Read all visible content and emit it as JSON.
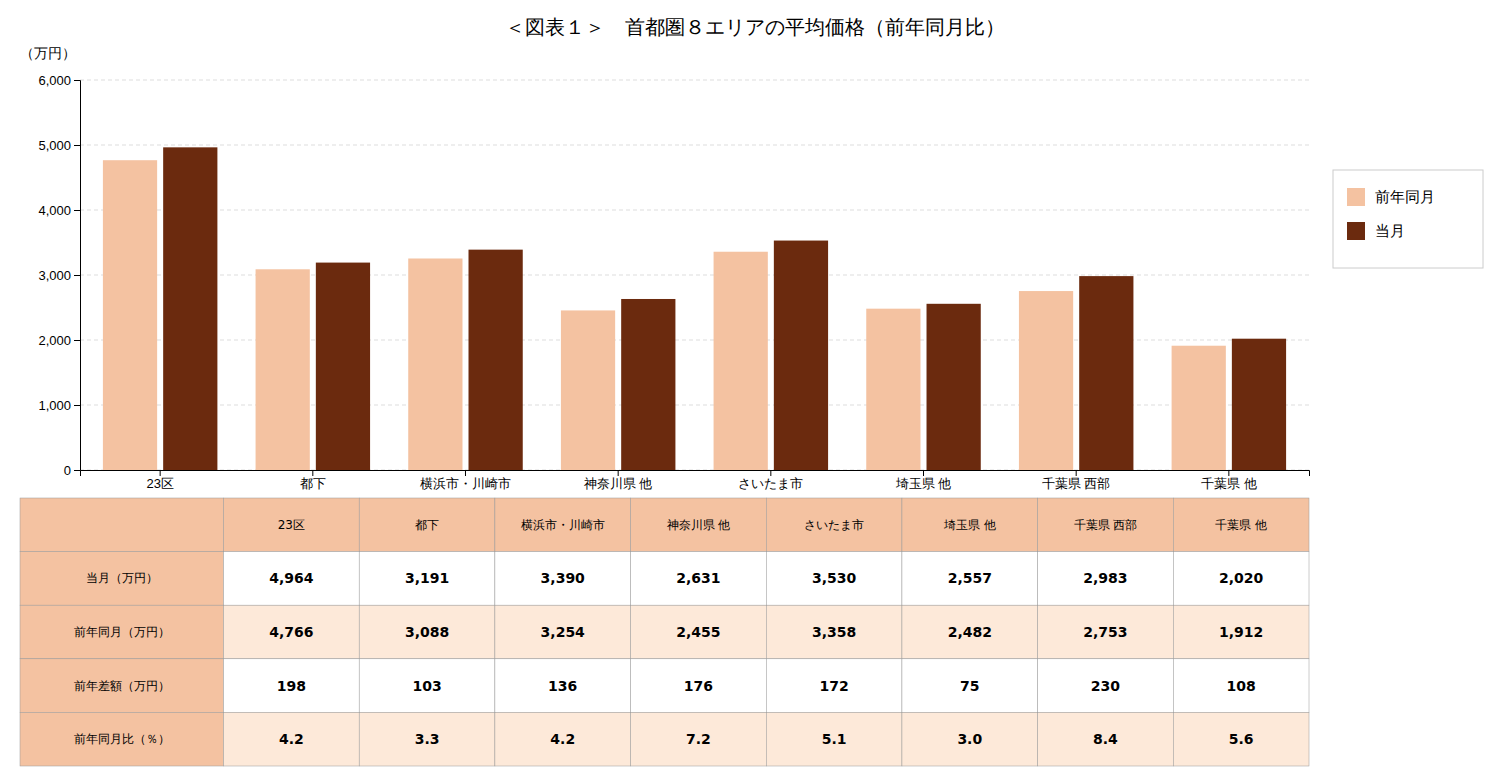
{
  "chart_data": {
    "type": "bar",
    "title": "＜図表１＞　首都圏８エリアの平均価格（前年同月比）",
    "ylabel": "（万円）",
    "categories": [
      "23区",
      "都下",
      "横浜市・川崎市",
      "神奈川県 他",
      "さいたま市",
      "埼玉県 他",
      "千葉県 西部",
      "千葉県 他"
    ],
    "series": [
      {
        "name": "前年同月",
        "color": "#F4C2A1",
        "values": [
          4766,
          3088,
          3254,
          2455,
          3358,
          2482,
          2753,
          1912
        ]
      },
      {
        "name": "当月",
        "color": "#6B2A0E",
        "values": [
          4964,
          3191,
          3390,
          2631,
          3530,
          2557,
          2983,
          2020
        ]
      }
    ],
    "ylim": [
      0,
      6000
    ],
    "yticks": [
      0,
      {
        "value": 1000,
        "label": "1,000"
      },
      {
        "value": 2000,
        "label": "2,000"
      },
      {
        "value": 3000,
        "label": "3,000"
      },
      {
        "value": 4000,
        "label": "4,000"
      },
      {
        "value": 5000,
        "label": "5,000"
      },
      {
        "value": 6000,
        "label": "6,000"
      }
    ],
    "grid": true,
    "legend": "right",
    "table": {
      "row_labels": [
        "当月（万円）",
        "前年同月（万円）",
        "前年差額（万円）",
        "前年同月比（％）"
      ],
      "values": [
        [
          4964,
          3191,
          3390,
          2631,
          3530,
          2557,
          2983,
          2020
        ],
        [
          4766,
          3088,
          3254,
          2455,
          3358,
          2482,
          2753,
          1912
        ],
        [
          198,
          103,
          136,
          176,
          172,
          75,
          230,
          108
        ],
        [
          4.2,
          3.3,
          4.2,
          7.2,
          5.1,
          3.0,
          8.4,
          5.6
        ]
      ],
      "value_labels": [
        [
          "4,964",
          "3,191",
          "3,390",
          "2,631",
          "3,530",
          "2,557",
          "2,983",
          "2,020"
        ],
        [
          "4,766",
          "3,088",
          "3,254",
          "2,455",
          "3,358",
          "2,482",
          "2,753",
          "1,912"
        ],
        [
          "198",
          "103",
          "136",
          "176",
          "172",
          "75",
          "230",
          "108"
        ],
        [
          "4.2",
          "3.3",
          "4.2",
          "7.2",
          "5.1",
          "3.0",
          "8.4",
          "5.6"
        ]
      ],
      "header_color": "#F4C2A1",
      "row_colors": [
        "#FFFFFF",
        "#FDE9D9"
      ]
    }
  }
}
